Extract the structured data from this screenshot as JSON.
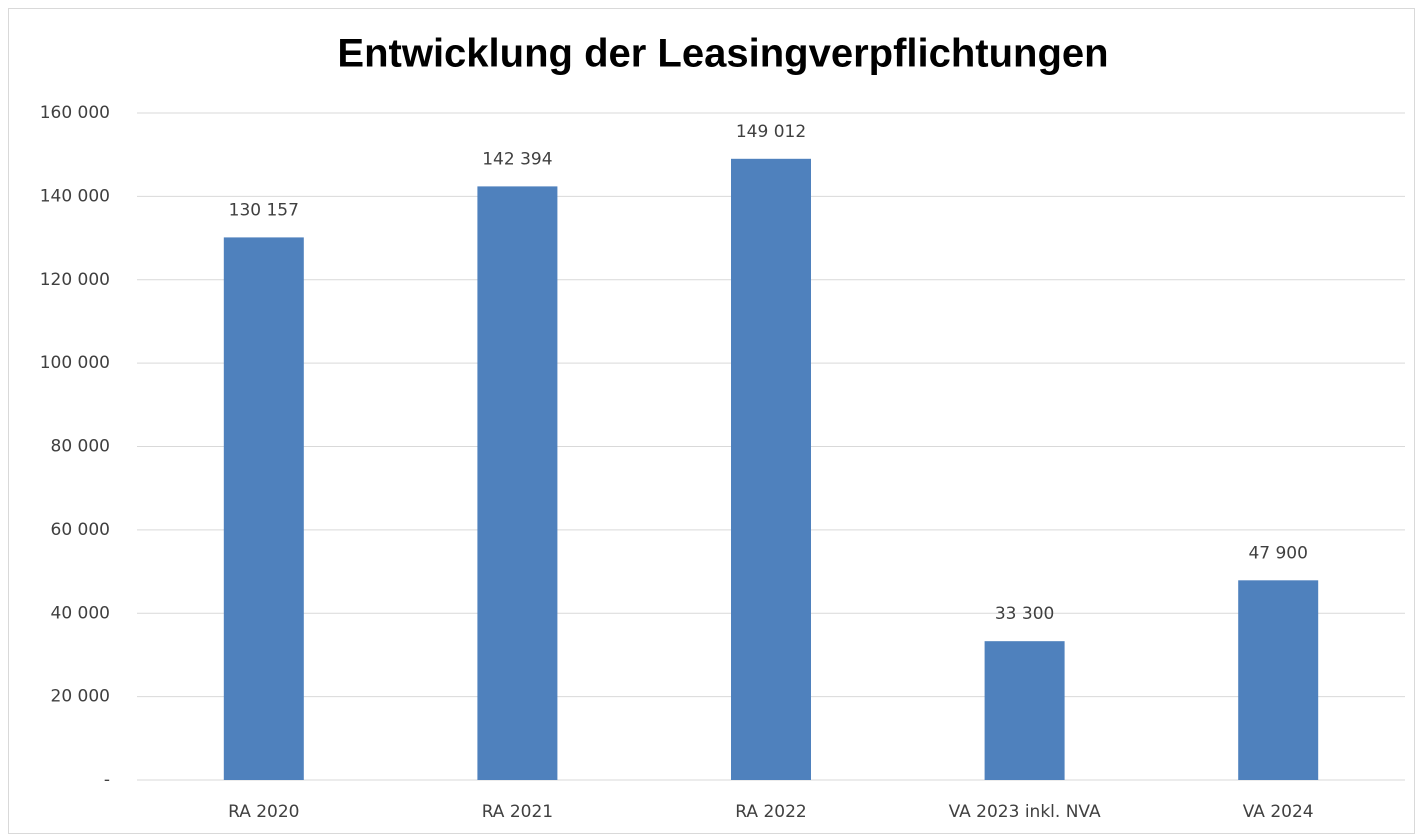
{
  "chart_data": {
    "type": "bar",
    "title": "Entwicklung der Leasingverpflichtungen",
    "categories": [
      "RA 2020",
      "RA 2021",
      "RA 2022",
      "VA 2023 inkl. NVA",
      "VA 2024"
    ],
    "values": [
      130157,
      142394,
      149012,
      33300,
      47900
    ],
    "value_labels": [
      "130 157",
      "142 394",
      "149 012",
      "33 300",
      "47 900"
    ],
    "color": "#4f81bd",
    "ylim": [
      0,
      160000
    ],
    "yticks": [
      {
        "value": 0,
        "label": "-"
      },
      {
        "value": 20000,
        "label": "20 000"
      },
      {
        "value": 40000,
        "label": "40 000"
      },
      {
        "value": 60000,
        "label": "60 000"
      },
      {
        "value": 80000,
        "label": "80 000"
      },
      {
        "value": 100000,
        "label": "100 000"
      },
      {
        "value": 120000,
        "label": "120 000"
      },
      {
        "value": 140000,
        "label": "140 000"
      },
      {
        "value": 160000,
        "label": "160 000"
      }
    ],
    "grid": true
  }
}
